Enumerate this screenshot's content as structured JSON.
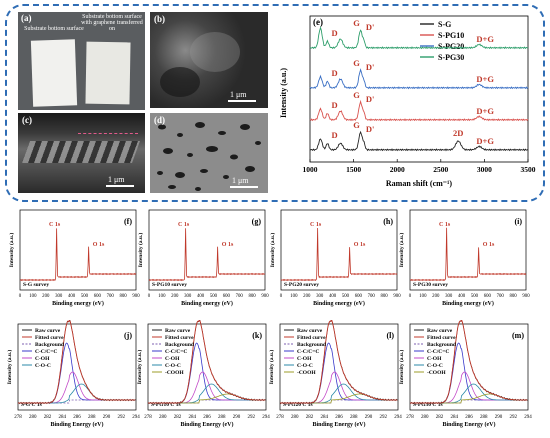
{
  "panel_a": {
    "label": "(a)",
    "left_caption": "Substrate bottom surface",
    "right_caption": "Substrate bottom surface with graphene transferred on"
  },
  "panel_b": {
    "label": "(b)",
    "scale": "1 μm"
  },
  "panel_c": {
    "label": "(c)",
    "scale": "1 μm"
  },
  "panel_d": {
    "label": "(d)",
    "scale": "1 μm"
  },
  "chart_data": [
    {
      "type": "line",
      "panel": "(e)",
      "xlabel": "Raman shift (cm⁻¹)",
      "ylabel": "Intensity (a.u.)",
      "xlim": [
        1000,
        3500
      ],
      "xticks": [
        1000,
        1500,
        2000,
        2500,
        3000,
        3500
      ],
      "legend_position": "top-right",
      "series": [
        {
          "name": "S-G",
          "color": "#222222",
          "peaks": [
            [
              "D",
              1350
            ],
            [
              "G",
              1580
            ],
            [
              "D'",
              1620
            ],
            [
              "2D",
              2700
            ],
            [
              "D+G",
              2940
            ]
          ]
        },
        {
          "name": "S-PG10",
          "color": "#d9534f",
          "peaks": [
            [
              "D",
              1350
            ],
            [
              "G",
              1580
            ],
            [
              "D'",
              1620
            ],
            [
              "D+G",
              2940
            ]
          ]
        },
        {
          "name": "S-PG20",
          "color": "#3a6fc4",
          "peaks": [
            [
              "D",
              1350
            ],
            [
              "G",
              1580
            ],
            [
              "D'",
              1620
            ],
            [
              "D+G",
              2940
            ]
          ]
        },
        {
          "name": "S-PG30",
          "color": "#2e9e6b",
          "peaks": [
            [
              "D",
              1350
            ],
            [
              "G",
              1580
            ],
            [
              "D'",
              1620
            ],
            [
              "D+G",
              2940
            ]
          ]
        }
      ]
    },
    {
      "type": "line",
      "panels": [
        "(f)",
        "(g)",
        "(h)",
        "(i)"
      ],
      "xlabel": "Binding energy (eV)",
      "ylabel": "Intensity (a.u.)",
      "xlim": [
        0,
        900
      ],
      "xticks": [
        0,
        100,
        200,
        300,
        400,
        500,
        600,
        700,
        800,
        900
      ],
      "spectra": [
        {
          "panel": "(f)",
          "name": "S-G survey",
          "peaks": [
            [
              "C 1s",
              284
            ],
            [
              "O 1s",
              532
            ]
          ]
        },
        {
          "panel": "(g)",
          "name": "S-PG10 survey",
          "peaks": [
            [
              "C 1s",
              284
            ],
            [
              "O 1s",
              532
            ]
          ]
        },
        {
          "panel": "(h)",
          "name": "S-PG20 survey",
          "peaks": [
            [
              "C 1s",
              284
            ],
            [
              "O 1s",
              532
            ]
          ]
        },
        {
          "panel": "(i)",
          "name": "S-PG30 survey",
          "peaks": [
            [
              "C 1s",
              284
            ],
            [
              "O 1s",
              532
            ]
          ]
        }
      ]
    },
    {
      "type": "line",
      "panels": [
        "(j)",
        "(k)",
        "(l)",
        "(m)"
      ],
      "xlabel": "Binding Energy (eV)",
      "ylabel": "Intensity (a.u.)",
      "xlim": [
        278,
        294
      ],
      "xticks": [
        278,
        280,
        282,
        284,
        286,
        288,
        290,
        292,
        294
      ],
      "spectra": [
        {
          "panel": "(j)",
          "name": "S-G C 1s",
          "legend": [
            "Raw curve",
            "Fitted curve",
            "Background",
            "C-C/C=C",
            "C-OH",
            "C-O-C"
          ]
        },
        {
          "panel": "(k)",
          "name": "S-PG10 C 1s",
          "legend": [
            "Raw curve",
            "Fitted curve",
            "Background",
            "C-C/C=C",
            "C-OH",
            "C-O-C",
            "-COOH"
          ]
        },
        {
          "panel": "(l)",
          "name": "S-PG20 C 1s",
          "legend": [
            "Raw curve",
            "Fitted curve",
            "Background",
            "C-C/C=C",
            "C-OH",
            "C-O-C",
            "-COOH"
          ]
        },
        {
          "panel": "(m)",
          "name": "S-PG30 C 1s",
          "legend": [
            "Raw curve",
            "Fitted curve",
            "Background",
            "C-C/C=C",
            "C-OH",
            "C-O-C",
            "-COOH"
          ]
        }
      ]
    }
  ]
}
